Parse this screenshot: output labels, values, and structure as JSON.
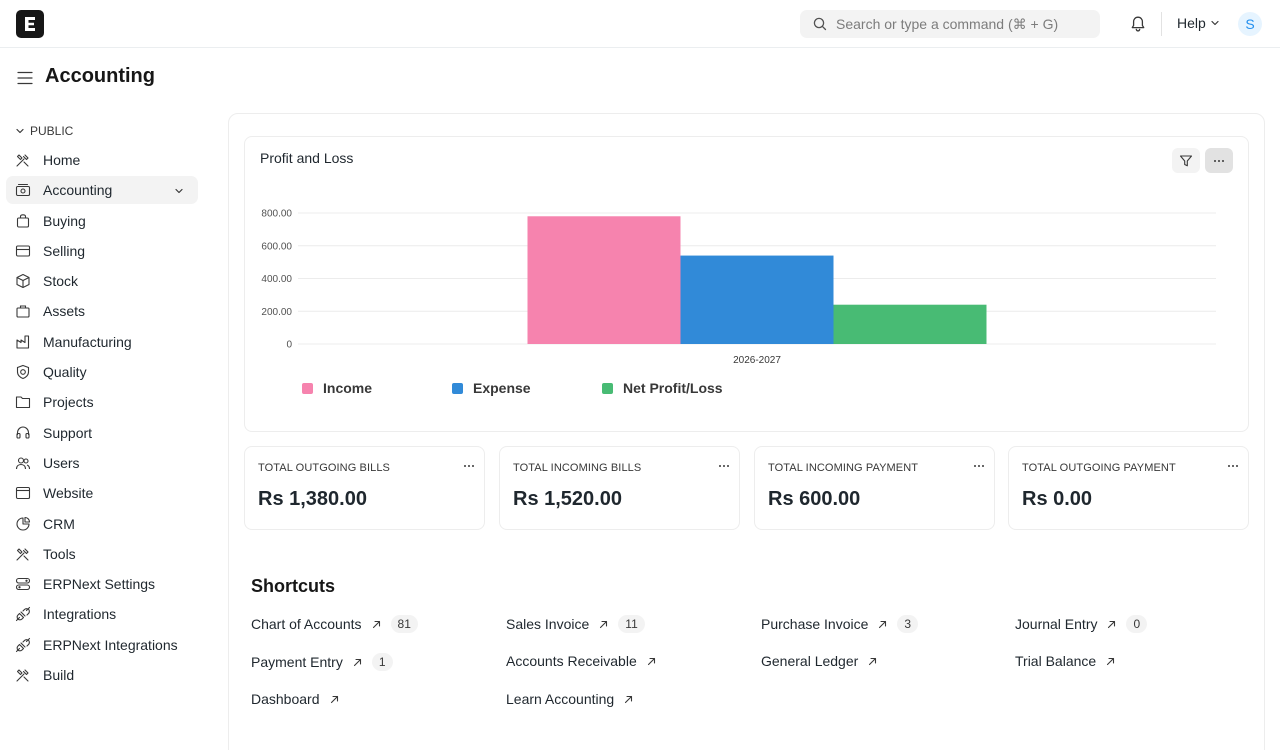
{
  "navbar": {
    "logo_letter": "E",
    "search_placeholder": "Search or type a command (⌘ + G)",
    "help_label": "Help",
    "avatar_initial": "S"
  },
  "page": {
    "title": "Accounting"
  },
  "sidebar": {
    "section_label": "PUBLIC",
    "items": [
      {
        "label": "Home",
        "icon": "home-icon"
      },
      {
        "label": "Accounting",
        "icon": "accounting-icon",
        "active": true
      },
      {
        "label": "Buying",
        "icon": "buying-icon"
      },
      {
        "label": "Selling",
        "icon": "selling-icon"
      },
      {
        "label": "Stock",
        "icon": "stock-icon"
      },
      {
        "label": "Assets",
        "icon": "assets-icon"
      },
      {
        "label": "Manufacturing",
        "icon": "manufacturing-icon"
      },
      {
        "label": "Quality",
        "icon": "quality-icon"
      },
      {
        "label": "Projects",
        "icon": "projects-icon"
      },
      {
        "label": "Support",
        "icon": "support-icon"
      },
      {
        "label": "Users",
        "icon": "users-icon"
      },
      {
        "label": "Website",
        "icon": "website-icon"
      },
      {
        "label": "CRM",
        "icon": "crm-icon"
      },
      {
        "label": "Tools",
        "icon": "tools-icon"
      },
      {
        "label": "ERPNext Settings",
        "icon": "settings-icon"
      },
      {
        "label": "Integrations",
        "icon": "integrations-icon"
      },
      {
        "label": "ERPNext Integrations",
        "icon": "integrations-icon"
      },
      {
        "label": "Build",
        "icon": "build-icon"
      }
    ]
  },
  "chart_data": {
    "type": "bar",
    "title": "Profit and Loss",
    "categories": [
      "2026-2027"
    ],
    "series": [
      {
        "name": "Income",
        "values": [
          780
        ],
        "color": "#f683ae"
      },
      {
        "name": "Expense",
        "values": [
          540
        ],
        "color": "#318ad8"
      },
      {
        "name": "Net Profit/Loss",
        "values": [
          240
        ],
        "color": "#48bb74"
      }
    ],
    "y_ticks": [
      "0",
      "200.00",
      "400.00",
      "600.00",
      "800.00"
    ],
    "ylim": [
      0,
      800
    ],
    "grid": true,
    "legend_position": "bottom-left"
  },
  "number_cards": [
    {
      "label": "TOTAL OUTGOING BILLS",
      "value": "Rs 1,380.00"
    },
    {
      "label": "TOTAL INCOMING BILLS",
      "value": "Rs 1,520.00"
    },
    {
      "label": "TOTAL INCOMING PAYMENT",
      "value": "Rs 600.00"
    },
    {
      "label": "TOTAL OUTGOING PAYMENT",
      "value": "Rs 0.00"
    }
  ],
  "shortcuts": {
    "title": "Shortcuts",
    "items": [
      {
        "label": "Chart of Accounts",
        "count": "81"
      },
      {
        "label": "Sales Invoice",
        "count": "11"
      },
      {
        "label": "Purchase Invoice",
        "count": "3"
      },
      {
        "label": "Journal Entry",
        "count": "0"
      },
      {
        "label": "Payment Entry",
        "count": "1"
      },
      {
        "label": "Accounts Receivable",
        "count": null
      },
      {
        "label": "General Ledger",
        "count": null
      },
      {
        "label": "Trial Balance",
        "count": null
      },
      {
        "label": "Dashboard",
        "count": null
      },
      {
        "label": "Learn Accounting",
        "count": null
      }
    ]
  }
}
